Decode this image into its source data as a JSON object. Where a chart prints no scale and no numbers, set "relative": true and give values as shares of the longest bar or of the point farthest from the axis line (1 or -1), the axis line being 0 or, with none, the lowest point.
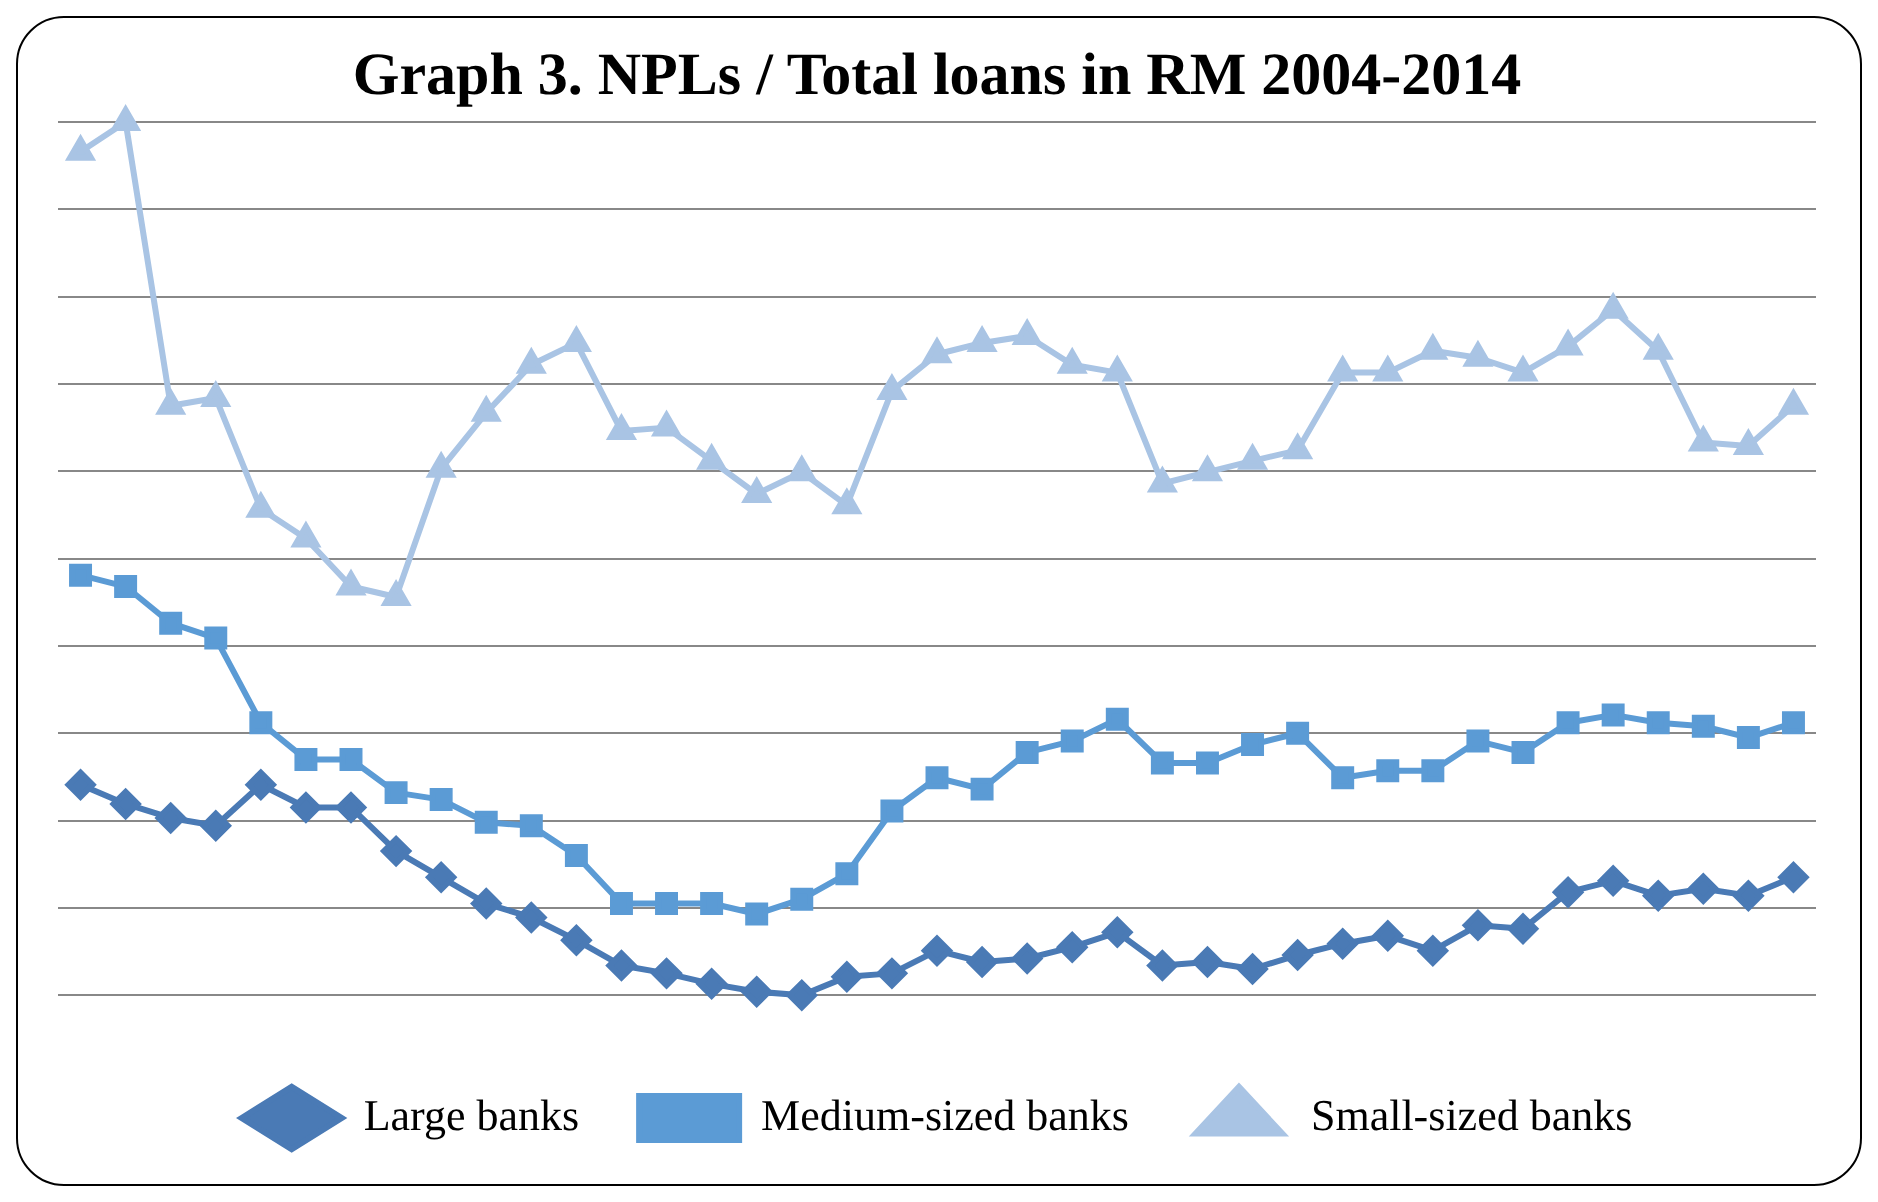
{
  "chart_data": {
    "type": "line",
    "title": "Graph 3. NPLs / Total loans in RM 2004-2014",
    "relative": true,
    "grid": "y",
    "legend": "bottom",
    "categories": [
      null,
      null,
      null,
      null,
      null,
      null,
      null,
      null,
      null,
      null,
      null,
      null,
      null,
      null,
      null,
      null,
      null,
      null,
      null,
      null,
      null,
      null,
      null,
      null,
      null,
      null,
      null,
      null,
      null,
      null,
      null,
      null,
      null,
      null,
      null,
      null,
      null,
      null,
      null
    ],
    "series": [
      {
        "name": "Large banks",
        "color": "#4a7ab5",
        "marker": "diamond",
        "values": [
          0.241,
          0.219,
          0.203,
          0.194,
          0.241,
          0.215,
          0.215,
          0.165,
          0.135,
          0.105,
          0.089,
          0.063,
          0.034,
          0.025,
          0.013,
          0.004,
          0,
          0.021,
          0.025,
          0.051,
          0.038,
          0.042,
          0.055,
          0.072,
          0.034,
          0.038,
          0.03,
          0.046,
          0.059,
          0.068,
          0.051,
          0.08,
          0.076,
          0.118,
          0.131,
          0.114,
          0.122,
          0.114,
          0.135
        ]
      },
      {
        "name": "Medium-sized banks",
        "color": "#5b9bd5",
        "marker": "square",
        "values": [
          0.481,
          0.468,
          0.426,
          0.409,
          0.312,
          0.27,
          0.27,
          0.232,
          0.224,
          0.198,
          0.194,
          0.16,
          0.105,
          0.105,
          0.105,
          0.093,
          0.11,
          0.139,
          0.211,
          0.249,
          0.236,
          0.278,
          0.291,
          0.316,
          0.266,
          0.266,
          0.287,
          0.3,
          0.249,
          0.257,
          0.257,
          0.291,
          0.278,
          0.312,
          0.321,
          0.312,
          0.308,
          0.295,
          0.312
        ]
      },
      {
        "name": "Small-sized banks",
        "color": "#a9c4e4",
        "marker": "triangle",
        "values": [
          0.966,
          1,
          0.675,
          0.684,
          0.557,
          0.523,
          0.468,
          0.456,
          0.603,
          0.667,
          0.722,
          0.747,
          0.646,
          0.65,
          0.612,
          0.574,
          0.599,
          0.561,
          0.692,
          0.734,
          0.747,
          0.755,
          0.722,
          0.713,
          0.586,
          0.599,
          0.612,
          0.624,
          0.713,
          0.713,
          0.738,
          0.73,
          0.713,
          0.743,
          0.785,
          0.738,
          0.633,
          0.629,
          0.675
        ]
      }
    ]
  }
}
